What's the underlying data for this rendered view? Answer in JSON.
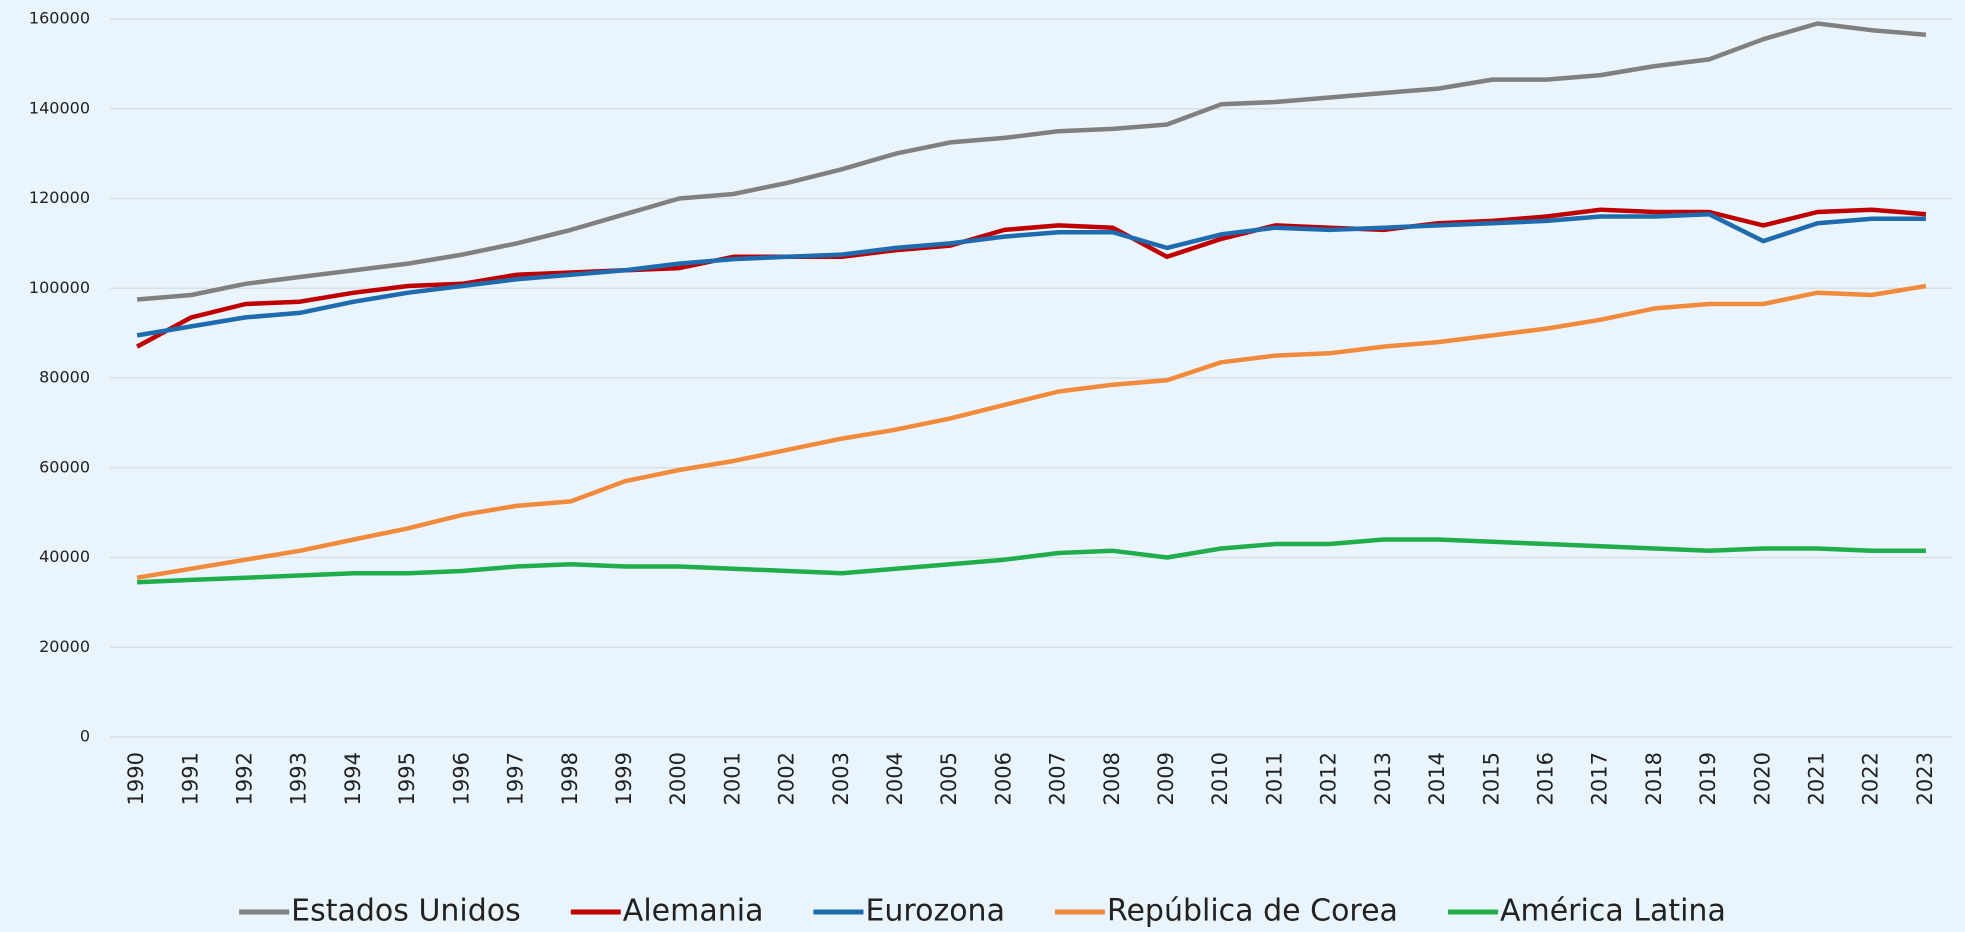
{
  "chart_data": {
    "type": "line",
    "categories": [
      "1990",
      "1991",
      "1992",
      "1993",
      "1994",
      "1995",
      "1996",
      "1997",
      "1998",
      "1999",
      "2000",
      "2001",
      "2002",
      "2003",
      "2004",
      "2005",
      "2006",
      "2007",
      "2008",
      "2009",
      "2010",
      "2011",
      "2012",
      "2013",
      "2014",
      "2015",
      "2016",
      "2017",
      "2018",
      "2019",
      "2020",
      "2021",
      "2022",
      "2023"
    ],
    "series": [
      {
        "name": "Estados Unidos",
        "color": "#808080",
        "values": [
          97500,
          98500,
          101000,
          102500,
          104000,
          105500,
          107500,
          110000,
          113000,
          116500,
          120000,
          121000,
          123500,
          126500,
          130000,
          132500,
          133500,
          135000,
          135500,
          136500,
          141000,
          141500,
          142500,
          143500,
          144500,
          146500,
          146500,
          147500,
          149500,
          151000,
          155500,
          159000,
          157500,
          156500
        ]
      },
      {
        "name": "Alemania",
        "color": "#c00000",
        "values": [
          87000,
          93500,
          96500,
          97000,
          99000,
          100500,
          101000,
          103000,
          103500,
          104000,
          104500,
          107000,
          107000,
          107000,
          108500,
          109500,
          113000,
          114000,
          113500,
          107000,
          111000,
          114000,
          113500,
          113000,
          114500,
          115000,
          116000,
          117500,
          117000,
          117000,
          114000,
          117000,
          117500,
          116500
        ]
      },
      {
        "name": "Eurozona",
        "color": "#1f6bb0",
        "values": [
          89500,
          91500,
          93500,
          94500,
          97000,
          99000,
          100500,
          102000,
          103000,
          104000,
          105500,
          106500,
          107000,
          107500,
          109000,
          110000,
          111500,
          112500,
          112500,
          109000,
          112000,
          113500,
          113000,
          113500,
          114000,
          114500,
          115000,
          116000,
          116000,
          116500,
          110500,
          114500,
          115500,
          115500
        ]
      },
      {
        "name": "República de Corea",
        "color": "#f28a3c",
        "values": [
          35500,
          37500,
          39500,
          41500,
          44000,
          46500,
          49500,
          51500,
          52500,
          57000,
          59500,
          61500,
          64000,
          66500,
          68500,
          71000,
          74000,
          77000,
          78500,
          79500,
          83500,
          85000,
          85500,
          87000,
          88000,
          89500,
          91000,
          93000,
          95500,
          96500,
          96500,
          99000,
          98500,
          100500
        ]
      },
      {
        "name": "América Latina",
        "color": "#1fae4b",
        "values": [
          34500,
          35000,
          35500,
          36000,
          36500,
          36500,
          37000,
          38000,
          38500,
          38000,
          38000,
          37500,
          37000,
          36500,
          37500,
          38500,
          39500,
          41000,
          41500,
          40000,
          42000,
          43000,
          43000,
          44000,
          44000,
          43500,
          43000,
          42500,
          42000,
          41500,
          42000,
          42000,
          41500,
          41500
        ]
      }
    ],
    "ylim": [
      0,
      160000
    ],
    "yticks": [
      0,
      20000,
      40000,
      60000,
      80000,
      100000,
      120000,
      140000,
      160000
    ],
    "grid": true,
    "legend": "bottom"
  }
}
